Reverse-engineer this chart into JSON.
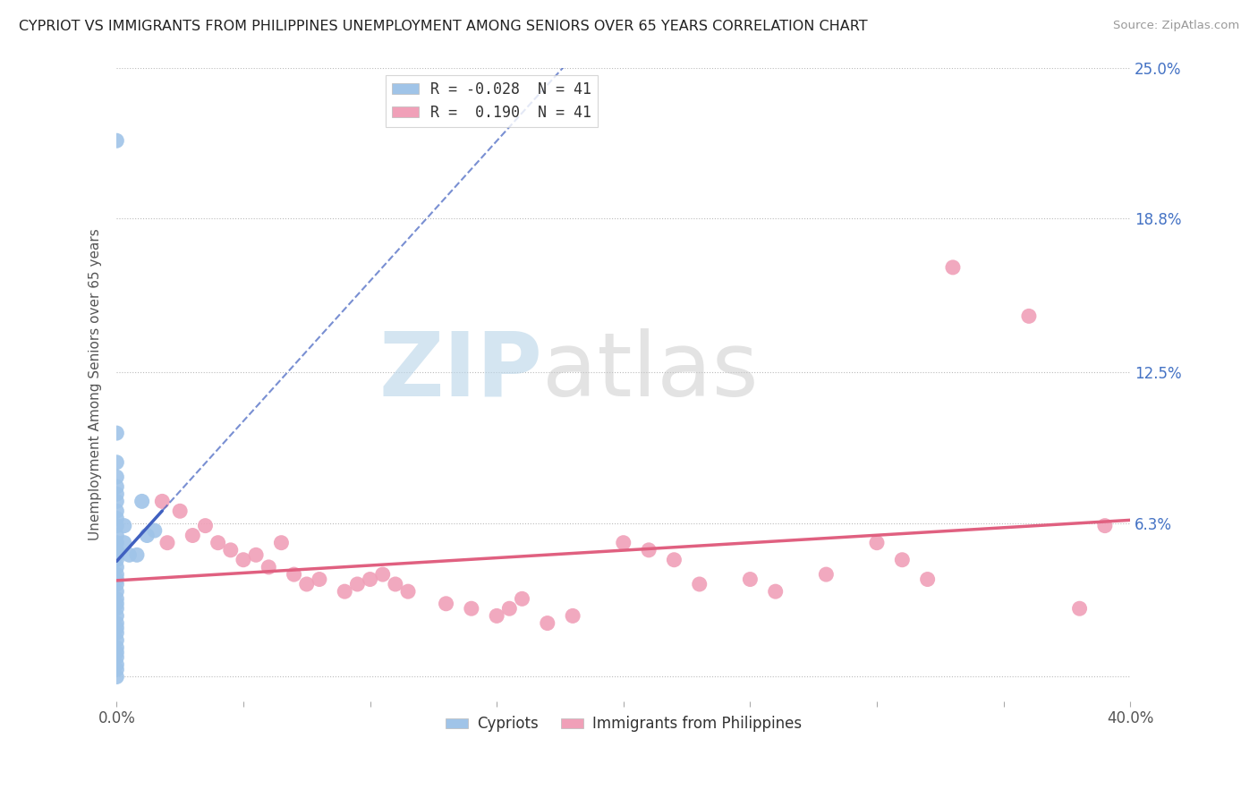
{
  "title": "CYPRIOT VS IMMIGRANTS FROM PHILIPPINES UNEMPLOYMENT AMONG SENIORS OVER 65 YEARS CORRELATION CHART",
  "source": "Source: ZipAtlas.com",
  "ylabel": "Unemployment Among Seniors over 65 years",
  "x_min": 0.0,
  "x_max": 0.4,
  "y_min": -0.01,
  "y_max": 0.25,
  "x_ticks": [
    0.0,
    0.05,
    0.1,
    0.15,
    0.2,
    0.25,
    0.3,
    0.35,
    0.4
  ],
  "y_ticks_right": [
    0.25,
    0.188,
    0.125,
    0.063,
    0.0
  ],
  "y_tick_labels_right": [
    "25.0%",
    "18.8%",
    "12.5%",
    "6.3%",
    ""
  ],
  "cypriot_color": "#a0c4e8",
  "philippines_color": "#f0a0b8",
  "trend_cypriot_color": "#4060c0",
  "trend_philippines_color": "#e06080",
  "cypriot_R": -0.028,
  "philippines_R": 0.19,
  "legend_r_n_label_1": "R = -0.028  N = 41",
  "legend_r_n_label_2": "R =  0.190  N = 41",
  "cypriot_points": [
    [
      0.0,
      0.22
    ],
    [
      0.0,
      0.1
    ],
    [
      0.0,
      0.088
    ],
    [
      0.0,
      0.082
    ],
    [
      0.0,
      0.078
    ],
    [
      0.0,
      0.075
    ],
    [
      0.0,
      0.072
    ],
    [
      0.0,
      0.068
    ],
    [
      0.0,
      0.065
    ],
    [
      0.0,
      0.062
    ],
    [
      0.0,
      0.058
    ],
    [
      0.0,
      0.055
    ],
    [
      0.0,
      0.052
    ],
    [
      0.0,
      0.05
    ],
    [
      0.0,
      0.048
    ],
    [
      0.0,
      0.045
    ],
    [
      0.0,
      0.042
    ],
    [
      0.0,
      0.04
    ],
    [
      0.0,
      0.038
    ],
    [
      0.0,
      0.035
    ],
    [
      0.0,
      0.032
    ],
    [
      0.0,
      0.03
    ],
    [
      0.0,
      0.028
    ],
    [
      0.0,
      0.025
    ],
    [
      0.0,
      0.022
    ],
    [
      0.0,
      0.02
    ],
    [
      0.0,
      0.018
    ],
    [
      0.0,
      0.015
    ],
    [
      0.0,
      0.012
    ],
    [
      0.0,
      0.01
    ],
    [
      0.0,
      0.008
    ],
    [
      0.0,
      0.005
    ],
    [
      0.0,
      0.003
    ],
    [
      0.0,
      0.0
    ],
    [
      0.003,
      0.062
    ],
    [
      0.003,
      0.055
    ],
    [
      0.005,
      0.05
    ],
    [
      0.008,
      0.05
    ],
    [
      0.01,
      0.072
    ],
    [
      0.012,
      0.058
    ],
    [
      0.015,
      0.06
    ]
  ],
  "philippines_points": [
    [
      0.018,
      0.072
    ],
    [
      0.02,
      0.055
    ],
    [
      0.025,
      0.068
    ],
    [
      0.03,
      0.058
    ],
    [
      0.035,
      0.062
    ],
    [
      0.04,
      0.055
    ],
    [
      0.045,
      0.052
    ],
    [
      0.05,
      0.048
    ],
    [
      0.055,
      0.05
    ],
    [
      0.06,
      0.045
    ],
    [
      0.065,
      0.055
    ],
    [
      0.07,
      0.042
    ],
    [
      0.075,
      0.038
    ],
    [
      0.08,
      0.04
    ],
    [
      0.09,
      0.035
    ],
    [
      0.095,
      0.038
    ],
    [
      0.1,
      0.04
    ],
    [
      0.105,
      0.042
    ],
    [
      0.11,
      0.038
    ],
    [
      0.115,
      0.035
    ],
    [
      0.13,
      0.03
    ],
    [
      0.14,
      0.028
    ],
    [
      0.15,
      0.025
    ],
    [
      0.155,
      0.028
    ],
    [
      0.16,
      0.032
    ],
    [
      0.17,
      0.022
    ],
    [
      0.18,
      0.025
    ],
    [
      0.2,
      0.055
    ],
    [
      0.21,
      0.052
    ],
    [
      0.22,
      0.048
    ],
    [
      0.23,
      0.038
    ],
    [
      0.25,
      0.04
    ],
    [
      0.26,
      0.035
    ],
    [
      0.28,
      0.042
    ],
    [
      0.3,
      0.055
    ],
    [
      0.31,
      0.048
    ],
    [
      0.32,
      0.04
    ],
    [
      0.33,
      0.168
    ],
    [
      0.36,
      0.148
    ],
    [
      0.38,
      0.028
    ],
    [
      0.39,
      0.062
    ]
  ],
  "watermark_zip_color": "#b8d4e8",
  "watermark_atlas_color": "#c8c8c8"
}
